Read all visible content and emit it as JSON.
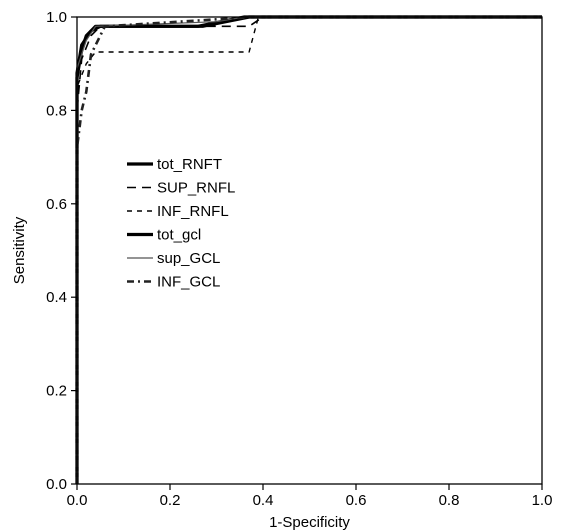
{
  "chart_data": {
    "type": "line",
    "xlabel": "1-Specificity",
    "ylabel": "Sensitivity",
    "xlim": [
      0.0,
      1.0
    ],
    "ylim": [
      0.0,
      1.0
    ],
    "xticks": [
      "0.0",
      "0.2",
      "0.4",
      "0.6",
      "0.8",
      "1.0"
    ],
    "yticks": [
      "0.0",
      "0.2",
      "0.4",
      "0.6",
      "0.8",
      "1.0"
    ],
    "grid": false,
    "legend_position": "left-middle",
    "series": [
      {
        "name": "tot_RNFT",
        "style": "thick-solid",
        "color": "#000000",
        "points": [
          [
            0.0,
            0.0
          ],
          [
            0.0,
            0.87
          ],
          [
            0.01,
            0.93
          ],
          [
            0.02,
            0.96
          ],
          [
            0.04,
            0.98
          ],
          [
            0.27,
            0.98
          ],
          [
            0.37,
            1.0
          ],
          [
            1.0,
            1.0
          ]
        ]
      },
      {
        "name": "SUP_RNFL",
        "style": "long-dash",
        "color": "#000000",
        "points": [
          [
            0.0,
            0.0
          ],
          [
            0.0,
            0.8
          ],
          [
            0.01,
            0.91
          ],
          [
            0.03,
            0.96
          ],
          [
            0.05,
            0.98
          ],
          [
            0.37,
            0.98
          ],
          [
            0.4,
            1.0
          ],
          [
            1.0,
            1.0
          ]
        ]
      },
      {
        "name": "INF_RNFL",
        "style": "short-dash",
        "color": "#000000",
        "points": [
          [
            0.0,
            0.0
          ],
          [
            0.0,
            0.85
          ],
          [
            0.02,
            0.9
          ],
          [
            0.04,
            0.925
          ],
          [
            0.37,
            0.925
          ],
          [
            0.39,
            1.0
          ],
          [
            1.0,
            1.0
          ]
        ]
      },
      {
        "name": "tot_gcl",
        "style": "thick-solid",
        "color": "#000000",
        "points": [
          [
            0.0,
            0.0
          ],
          [
            0.0,
            0.88
          ],
          [
            0.01,
            0.94
          ],
          [
            0.03,
            0.97
          ],
          [
            0.05,
            0.98
          ],
          [
            0.26,
            0.98
          ],
          [
            0.36,
            1.0
          ],
          [
            1.0,
            1.0
          ]
        ]
      },
      {
        "name": "sup_GCL",
        "style": "thin-solid",
        "color": "#555555",
        "points": [
          [
            0.0,
            0.0
          ],
          [
            0.0,
            0.89
          ],
          [
            0.02,
            0.95
          ],
          [
            0.04,
            0.98
          ],
          [
            0.3,
            0.99
          ],
          [
            0.36,
            1.0
          ],
          [
            1.0,
            1.0
          ]
        ]
      },
      {
        "name": "INF_GCL",
        "style": "dash-dot",
        "color": "#222222",
        "points": [
          [
            0.0,
            0.0
          ],
          [
            0.0,
            0.72
          ],
          [
            0.01,
            0.8
          ],
          [
            0.02,
            0.84
          ],
          [
            0.03,
            0.92
          ],
          [
            0.06,
            0.98
          ],
          [
            0.38,
            1.0
          ],
          [
            1.0,
            1.0
          ]
        ]
      }
    ]
  }
}
